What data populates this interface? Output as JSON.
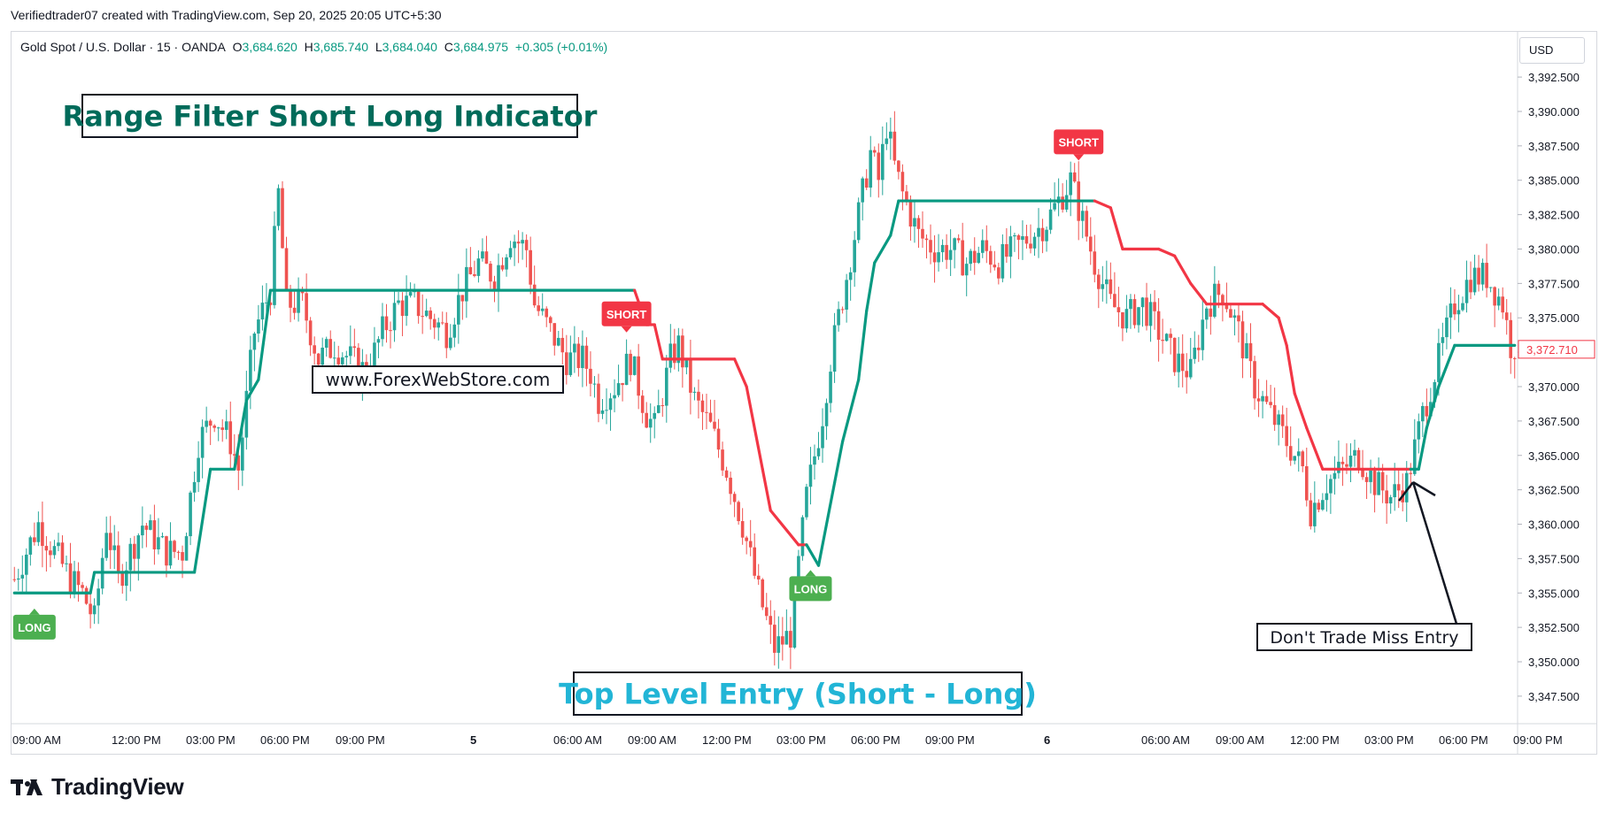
{
  "attribution": "Verifiedtrader07 created with TradingView.com, Sep 20, 2025 20:05 UTC+5:30",
  "legend": {
    "symbol": "Gold Spot / U.S. Dollar · 15 · OANDA",
    "open_label": "O",
    "open": "3,684.620",
    "high_label": "H",
    "high": "3,685.740",
    "low_label": "L",
    "low": "3,684.040",
    "close_label": "C",
    "close": "3,684.975",
    "change": "+0.305 (+0.01%)"
  },
  "currency": "USD",
  "brand": "TradingView",
  "colors": {
    "up": "#26a69a",
    "down": "#ef5350",
    "filter_up": "#089981",
    "filter_down": "#f23645",
    "long_label": "#4caf50",
    "short_label": "#f23645",
    "title_text": "#006b5a",
    "entry_text": "#22b5d6"
  },
  "annotations": {
    "title": "Range Filter Short Long Indicator",
    "website": "www.ForexWebStore.com",
    "entry_note": "Top Level Entry (Short - Long)",
    "miss_note": "Don't Trade Miss Entry"
  },
  "chart_data": {
    "type": "candlestick",
    "title": "Range Filter Short Long Indicator",
    "ylim": [
      3345.5,
      3394.5
    ],
    "y_ticks": [
      "3,347.500",
      "3,350.000",
      "3,352.500",
      "3,355.000",
      "3,357.500",
      "3,360.000",
      "3,362.500",
      "3,365.000",
      "3,367.500",
      "3,370.000",
      "3,372.500",
      "3,375.000",
      "3,377.500",
      "3,380.000",
      "3,382.500",
      "3,385.000",
      "3,387.500",
      "3,390.000",
      "3,392.500"
    ],
    "x_ticks": [
      "09:00 AM",
      "12:00 PM",
      "03:00 PM",
      "06:00 PM",
      "09:00 PM",
      "5",
      "06:00 AM",
      "09:00 AM",
      "12:00 PM",
      "03:00 PM",
      "06:00 PM",
      "09:00 PM",
      "6",
      "06:00 AM",
      "09:00 AM",
      "12:00 PM",
      "03:00 PM",
      "06:00 PM",
      "09:00 PM"
    ],
    "last_price": "3,372.710",
    "last_price_value": 3372.71,
    "candle_close_anchors": [
      [
        0,
        3356
      ],
      [
        6,
        3360
      ],
      [
        10,
        3358
      ],
      [
        14,
        3356
      ],
      [
        17,
        3355
      ],
      [
        20,
        3353
      ],
      [
        23,
        3360
      ],
      [
        26,
        3356
      ],
      [
        32,
        3360
      ],
      [
        38,
        3358
      ],
      [
        42,
        3358
      ],
      [
        46,
        3366
      ],
      [
        50,
        3368
      ],
      [
        54,
        3366
      ],
      [
        56,
        3364
      ],
      [
        60,
        3374
      ],
      [
        64,
        3377
      ],
      [
        66,
        3384
      ],
      [
        68,
        3376
      ],
      [
        72,
        3376
      ],
      [
        76,
        3372
      ],
      [
        80,
        3373
      ],
      [
        84,
        3372
      ],
      [
        88,
        3371
      ],
      [
        92,
        3374
      ],
      [
        96,
        3376
      ],
      [
        100,
        3376
      ],
      [
        104,
        3375
      ],
      [
        108,
        3374
      ],
      [
        112,
        3377
      ],
      [
        116,
        3379
      ],
      [
        120,
        3378
      ],
      [
        124,
        3381
      ],
      [
        128,
        3380
      ],
      [
        130,
        3376
      ],
      [
        134,
        3374
      ],
      [
        138,
        3372
      ],
      [
        142,
        3372
      ],
      [
        144,
        3371
      ],
      [
        146,
        3369
      ],
      [
        150,
        3370
      ],
      [
        154,
        3372
      ],
      [
        158,
        3368
      ],
      [
        160,
        3367
      ],
      [
        164,
        3372
      ],
      [
        166,
        3373
      ],
      [
        170,
        3369
      ],
      [
        174,
        3367
      ],
      [
        178,
        3364
      ],
      [
        182,
        3360
      ],
      [
        186,
        3355
      ],
      [
        190,
        3351
      ],
      [
        194,
        3352
      ],
      [
        198,
        3362
      ],
      [
        202,
        3368
      ],
      [
        204,
        3372
      ],
      [
        208,
        3378
      ],
      [
        212,
        3384
      ],
      [
        214,
        3387
      ],
      [
        216,
        3385
      ],
      [
        218,
        3389
      ],
      [
        220,
        3386
      ],
      [
        222,
        3384
      ],
      [
        226,
        3381
      ],
      [
        230,
        3380
      ],
      [
        234,
        3380
      ],
      [
        238,
        3379
      ],
      [
        242,
        3380
      ],
      [
        246,
        3379
      ],
      [
        250,
        3380
      ],
      [
        254,
        3381
      ],
      [
        258,
        3382
      ],
      [
        262,
        3384
      ],
      [
        264,
        3385
      ],
      [
        266,
        3383
      ],
      [
        268,
        3381
      ],
      [
        270,
        3379
      ],
      [
        274,
        3376
      ],
      [
        278,
        3375
      ],
      [
        282,
        3376
      ],
      [
        286,
        3374
      ],
      [
        290,
        3372
      ],
      [
        294,
        3371
      ],
      [
        298,
        3376
      ],
      [
        302,
        3377
      ],
      [
        306,
        3374
      ],
      [
        310,
        3370
      ],
      [
        314,
        3368
      ],
      [
        318,
        3366
      ],
      [
        322,
        3364
      ],
      [
        324,
        3361
      ],
      [
        328,
        3363
      ],
      [
        332,
        3364
      ],
      [
        336,
        3365
      ],
      [
        340,
        3363
      ],
      [
        344,
        3362
      ],
      [
        348,
        3363
      ],
      [
        352,
        3368
      ],
      [
        356,
        3372
      ],
      [
        360,
        3376
      ],
      [
        364,
        3378
      ],
      [
        368,
        3378
      ],
      [
        372,
        3376
      ],
      [
        374,
        3373
      ]
    ],
    "range_filter": [
      [
        0,
        3355.0,
        "up"
      ],
      [
        19,
        3355.0,
        "up"
      ],
      [
        20,
        3356.5,
        "up"
      ],
      [
        45,
        3356.5,
        "up"
      ],
      [
        49,
        3364.0,
        "up"
      ],
      [
        55,
        3364.0,
        "up"
      ],
      [
        58,
        3369.0,
        "up"
      ],
      [
        61,
        3370.5,
        "up"
      ],
      [
        64,
        3377.0,
        "up"
      ],
      [
        155,
        3377.0,
        "up"
      ],
      [
        158,
        3374.5,
        "down"
      ],
      [
        160,
        3374.5,
        "down"
      ],
      [
        162,
        3372.0,
        "down"
      ],
      [
        180,
        3372.0,
        "down"
      ],
      [
        183,
        3370.0,
        "down"
      ],
      [
        187,
        3364.0,
        "down"
      ],
      [
        189,
        3361.0,
        "down"
      ],
      [
        196,
        3358.5,
        "down"
      ],
      [
        198,
        3358.5,
        "down"
      ],
      [
        201,
        3357.0,
        "up"
      ],
      [
        205,
        3363.0,
        "up"
      ],
      [
        207,
        3366.0,
        "up"
      ],
      [
        211,
        3370.5,
        "up"
      ],
      [
        213,
        3375.5,
        "up"
      ],
      [
        215,
        3379.0,
        "up"
      ],
      [
        219,
        3381.0,
        "up"
      ],
      [
        221,
        3383.5,
        "up"
      ],
      [
        270,
        3383.5,
        "up"
      ],
      [
        274,
        3383.0,
        "down"
      ],
      [
        277,
        3380.0,
        "down"
      ],
      [
        286,
        3380.0,
        "down"
      ],
      [
        290,
        3379.5,
        "down"
      ],
      [
        294,
        3377.5,
        "down"
      ],
      [
        298,
        3376.0,
        "down"
      ],
      [
        312,
        3376.0,
        "down"
      ],
      [
        316,
        3375.0,
        "down"
      ],
      [
        318,
        3373.0,
        "down"
      ],
      [
        320,
        3369.5,
        "down"
      ],
      [
        323,
        3367.0,
        "down"
      ],
      [
        327,
        3364.0,
        "down"
      ],
      [
        349,
        3364.0,
        "down"
      ],
      [
        351,
        3364.0,
        "up"
      ],
      [
        353,
        3367.0,
        "up"
      ],
      [
        356,
        3370.0,
        "up"
      ],
      [
        360,
        3373.0,
        "up"
      ],
      [
        375,
        3373.0,
        "up"
      ]
    ],
    "signals": [
      {
        "type": "LONG",
        "bar": 5,
        "price": 3353.8
      },
      {
        "type": "SHORT",
        "bar": 153,
        "price": 3374.0
      },
      {
        "type": "LONG",
        "bar": 199,
        "price": 3356.6
      },
      {
        "type": "SHORT",
        "bar": 266,
        "price": 3386.5
      }
    ]
  }
}
